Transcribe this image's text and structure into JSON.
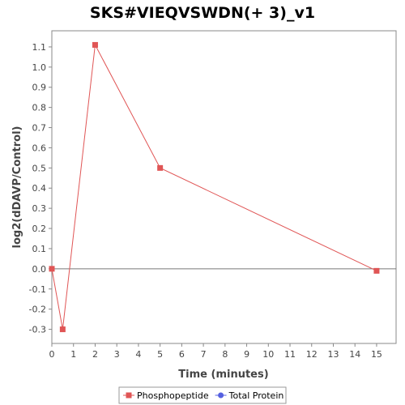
{
  "chart_data": {
    "type": "line",
    "title": "SKS#VIEQVSWDN(+ 3)_v1",
    "xlabel": "Time (minutes)",
    "ylabel": "log2(dDAVP/Control)",
    "xlim": [
      0,
      15.9
    ],
    "ylim": [
      -0.37,
      1.18
    ],
    "x_ticks": [
      0,
      1,
      2,
      3,
      4,
      5,
      6,
      7,
      8,
      9,
      10,
      11,
      12,
      13,
      14,
      15
    ],
    "y_ticks": [
      -0.3,
      -0.2,
      -0.1,
      0.0,
      0.1,
      0.2,
      0.3,
      0.4,
      0.5,
      0.6,
      0.7,
      0.8,
      0.9,
      1.0,
      1.1
    ],
    "x_tick_labels": [
      "0",
      "1",
      "2",
      "3",
      "4",
      "5",
      "6",
      "7",
      "8",
      "9",
      "10",
      "11",
      "12",
      "13",
      "14",
      "15"
    ],
    "y_tick_labels": [
      "-0.3",
      "-0.2",
      "-0.1",
      "0.0",
      "0.1",
      "0.2",
      "0.3",
      "0.4",
      "0.5",
      "0.6",
      "0.7",
      "0.8",
      "0.9",
      "1.0",
      "1.1"
    ],
    "grid": false,
    "zero_line": true,
    "legend_position": "bottom",
    "series": [
      {
        "name": "Phosphopeptide",
        "color": "#e05555",
        "marker": "square",
        "x": [
          0,
          0.5,
          2,
          5,
          15
        ],
        "y": [
          0.0,
          -0.3,
          1.11,
          0.5,
          -0.01
        ]
      },
      {
        "name": "Total Protein",
        "color": "#5560e0",
        "marker": "circle",
        "x": [],
        "y": []
      }
    ]
  }
}
